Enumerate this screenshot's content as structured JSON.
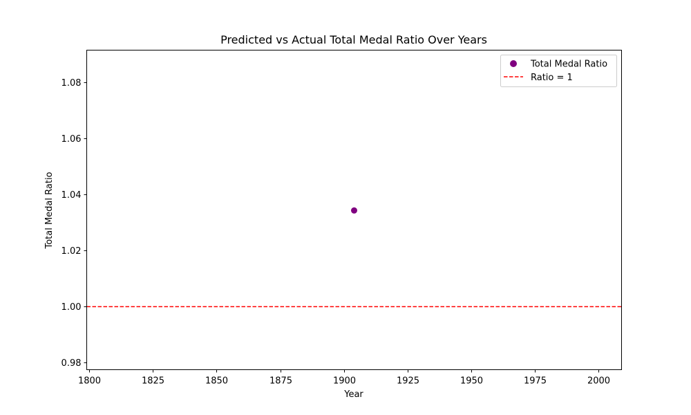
{
  "chart_data": {
    "type": "scatter",
    "title": "Predicted vs Actual Total Medal Ratio Over Years",
    "xlabel": "Year",
    "ylabel": "Total Medal Ratio",
    "xlim": [
      1799,
      2009
    ],
    "ylim": [
      0.9775,
      1.0915
    ],
    "xticks": [
      1800,
      1825,
      1850,
      1875,
      1900,
      1925,
      1950,
      1975,
      2000
    ],
    "yticks": [
      0.98,
      1.0,
      1.02,
      1.04,
      1.06,
      1.08
    ],
    "ytick_labels": [
      "0.98",
      "1.00",
      "1.02",
      "1.04",
      "1.06",
      "1.08"
    ],
    "grid": false,
    "legend_position": "top-right",
    "series": [
      {
        "name": "Total Medal Ratio",
        "kind": "scatter",
        "color": "#800080",
        "points": [
          {
            "x": 1904,
            "y": 1.0343
          }
        ]
      }
    ],
    "reference_lines": [
      {
        "name": "Ratio = 1",
        "orientation": "horizontal",
        "y": 1.0,
        "style": "dashed",
        "color": "#ff0000"
      }
    ]
  }
}
